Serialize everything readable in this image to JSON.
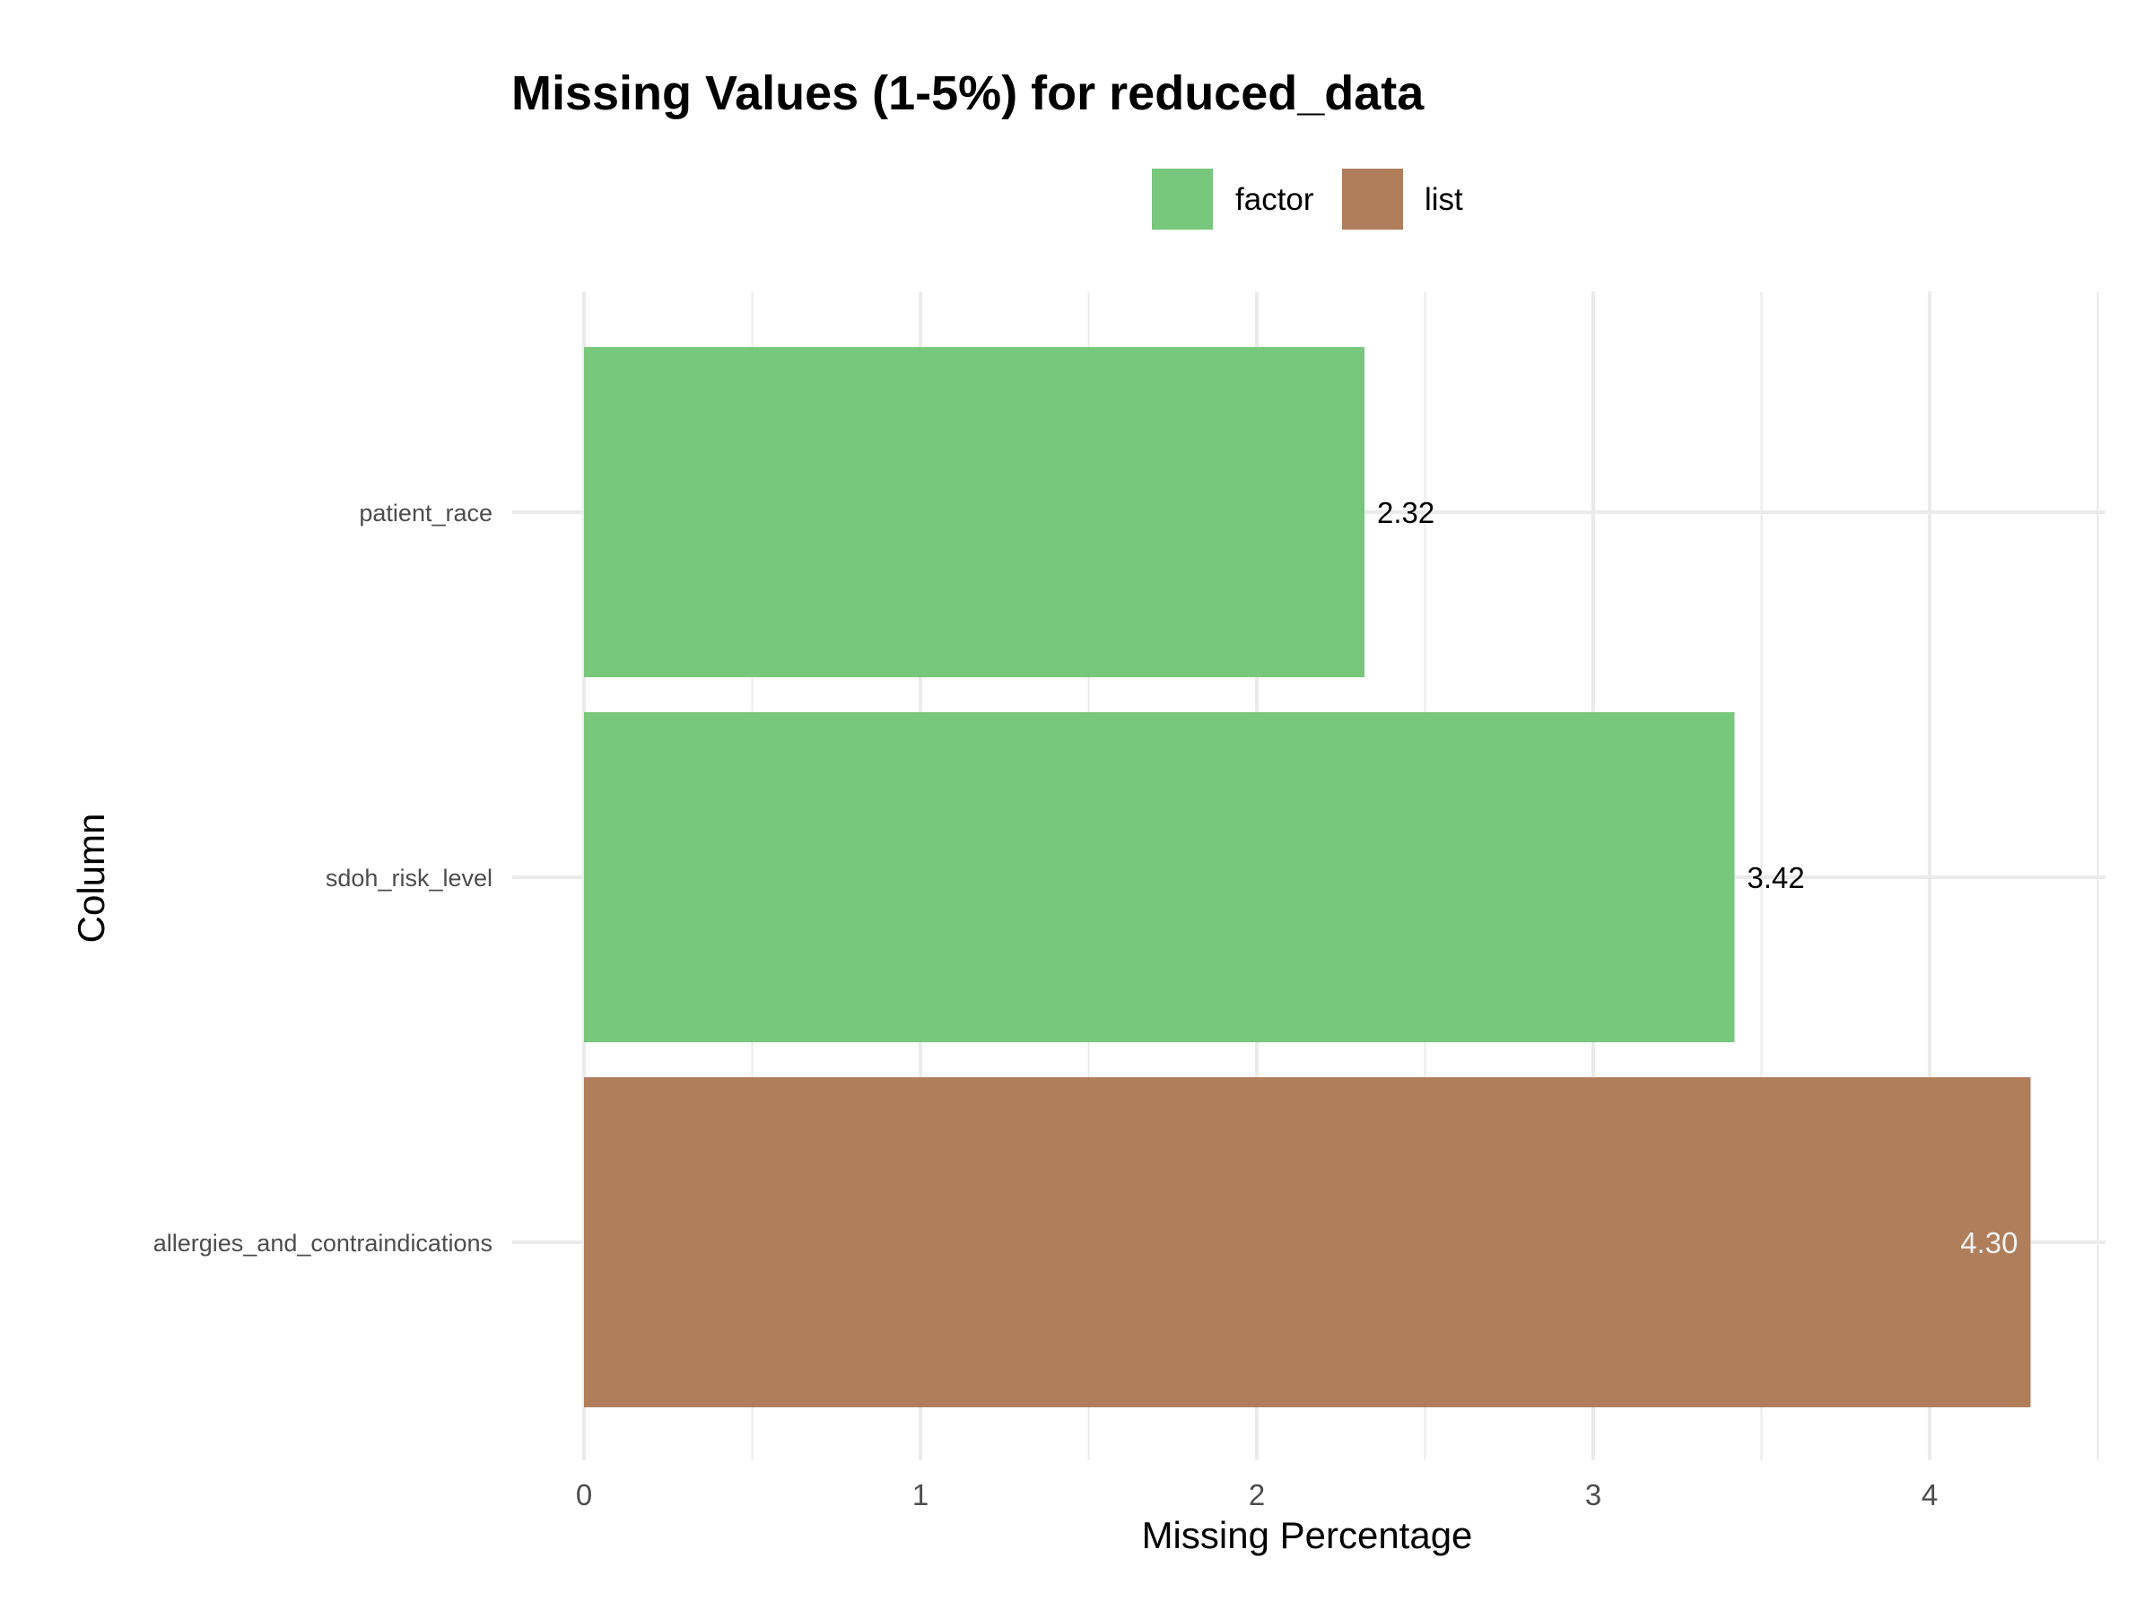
{
  "chart_data": {
    "type": "bar",
    "orientation": "horizontal",
    "title": "Missing Values (1-5%) for reduced_data",
    "xlabel": "Missing Percentage",
    "ylabel": "Column",
    "xlim": [
      0,
      4.5
    ],
    "x_ticks": [
      0,
      1,
      2,
      3,
      4
    ],
    "grid": true,
    "legend": {
      "placement": "top",
      "entries": [
        {
          "name": "factor",
          "color": "#77C77C"
        },
        {
          "name": "list",
          "color": "#B07E5B"
        }
      ]
    },
    "categories": [
      "patient_race",
      "sdoh_risk_level",
      "allergies_and_contraindications"
    ],
    "values": [
      2.32,
      3.42,
      4.3
    ],
    "value_labels": [
      "2.32",
      "3.42",
      "4.30"
    ],
    "bar_types": [
      "factor",
      "factor",
      "list"
    ],
    "colors": {
      "factor": "#77C77C",
      "list": "#B07E5B",
      "grid": "#EBEBEB",
      "label_outside": "#000000",
      "label_inside": "#F2F2F2",
      "axis_text": "#4D4D4D",
      "title": "#000000"
    }
  }
}
